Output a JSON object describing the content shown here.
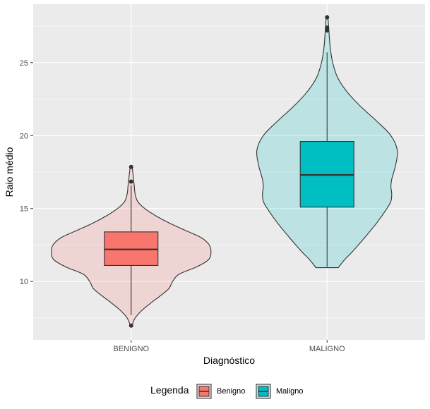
{
  "chart_data": {
    "type": "violin",
    "xlabel": "Diagnóstico",
    "ylabel": "Raio médio",
    "categories": [
      "BENIGNO",
      "MALIGNO"
    ],
    "ylim": [
      6.0,
      29.0
    ],
    "yticks": [
      10,
      15,
      20,
      25
    ],
    "grid": true,
    "legend": {
      "title": "Legenda",
      "placement": "bottom",
      "entries": [
        "Benigno",
        "Maligno"
      ]
    },
    "colors": {
      "panel": "#ebebeb",
      "grid": "#ffffff",
      "benigno": "#f8766d",
      "maligno": "#00bfc4",
      "outline": "#333333"
    },
    "series": [
      {
        "name": "Benigno",
        "category": "BENIGNO",
        "color": "#f8766d",
        "box": {
          "min": 7.7,
          "q1": 11.1,
          "median": 12.2,
          "q3": 13.4,
          "max": 16.6
        },
        "outliers": [
          6.98,
          16.85,
          17.85
        ],
        "violin": [
          [
            6.98,
            0.01
          ],
          [
            7.5,
            0.05
          ],
          [
            8.0,
            0.13
          ],
          [
            8.5,
            0.24
          ],
          [
            9.0,
            0.36
          ],
          [
            9.5,
            0.47
          ],
          [
            10.0,
            0.52
          ],
          [
            10.5,
            0.6
          ],
          [
            11.0,
            0.82
          ],
          [
            11.5,
            0.97
          ],
          [
            12.0,
            1.0
          ],
          [
            12.5,
            0.98
          ],
          [
            13.0,
            0.88
          ],
          [
            13.5,
            0.68
          ],
          [
            14.0,
            0.48
          ],
          [
            14.5,
            0.31
          ],
          [
            15.0,
            0.17
          ],
          [
            15.5,
            0.08
          ],
          [
            16.0,
            0.05
          ],
          [
            16.5,
            0.04
          ],
          [
            17.0,
            0.03
          ],
          [
            17.5,
            0.02
          ],
          [
            17.85,
            0.01
          ]
        ]
      },
      {
        "name": "Maligno",
        "category": "MALIGNO",
        "color": "#00bfc4",
        "box": {
          "min": 11.0,
          "q1": 15.1,
          "median": 17.3,
          "q3": 19.6,
          "max": 25.7
        },
        "outliers": [
          27.2,
          27.4,
          28.1
        ],
        "violin": [
          [
            10.95,
            0.14
          ],
          [
            11.5,
            0.22
          ],
          [
            12.0,
            0.31
          ],
          [
            13.0,
            0.47
          ],
          [
            14.0,
            0.62
          ],
          [
            15.0,
            0.75
          ],
          [
            15.5,
            0.8
          ],
          [
            16.0,
            0.81
          ],
          [
            16.5,
            0.8
          ],
          [
            17.0,
            0.81
          ],
          [
            18.0,
            0.86
          ],
          [
            19.0,
            0.88
          ],
          [
            20.0,
            0.8
          ],
          [
            21.0,
            0.62
          ],
          [
            22.0,
            0.42
          ],
          [
            23.0,
            0.25
          ],
          [
            24.0,
            0.13
          ],
          [
            25.0,
            0.07
          ],
          [
            26.0,
            0.04
          ],
          [
            27.0,
            0.025
          ],
          [
            28.11,
            0.01
          ]
        ]
      }
    ]
  }
}
